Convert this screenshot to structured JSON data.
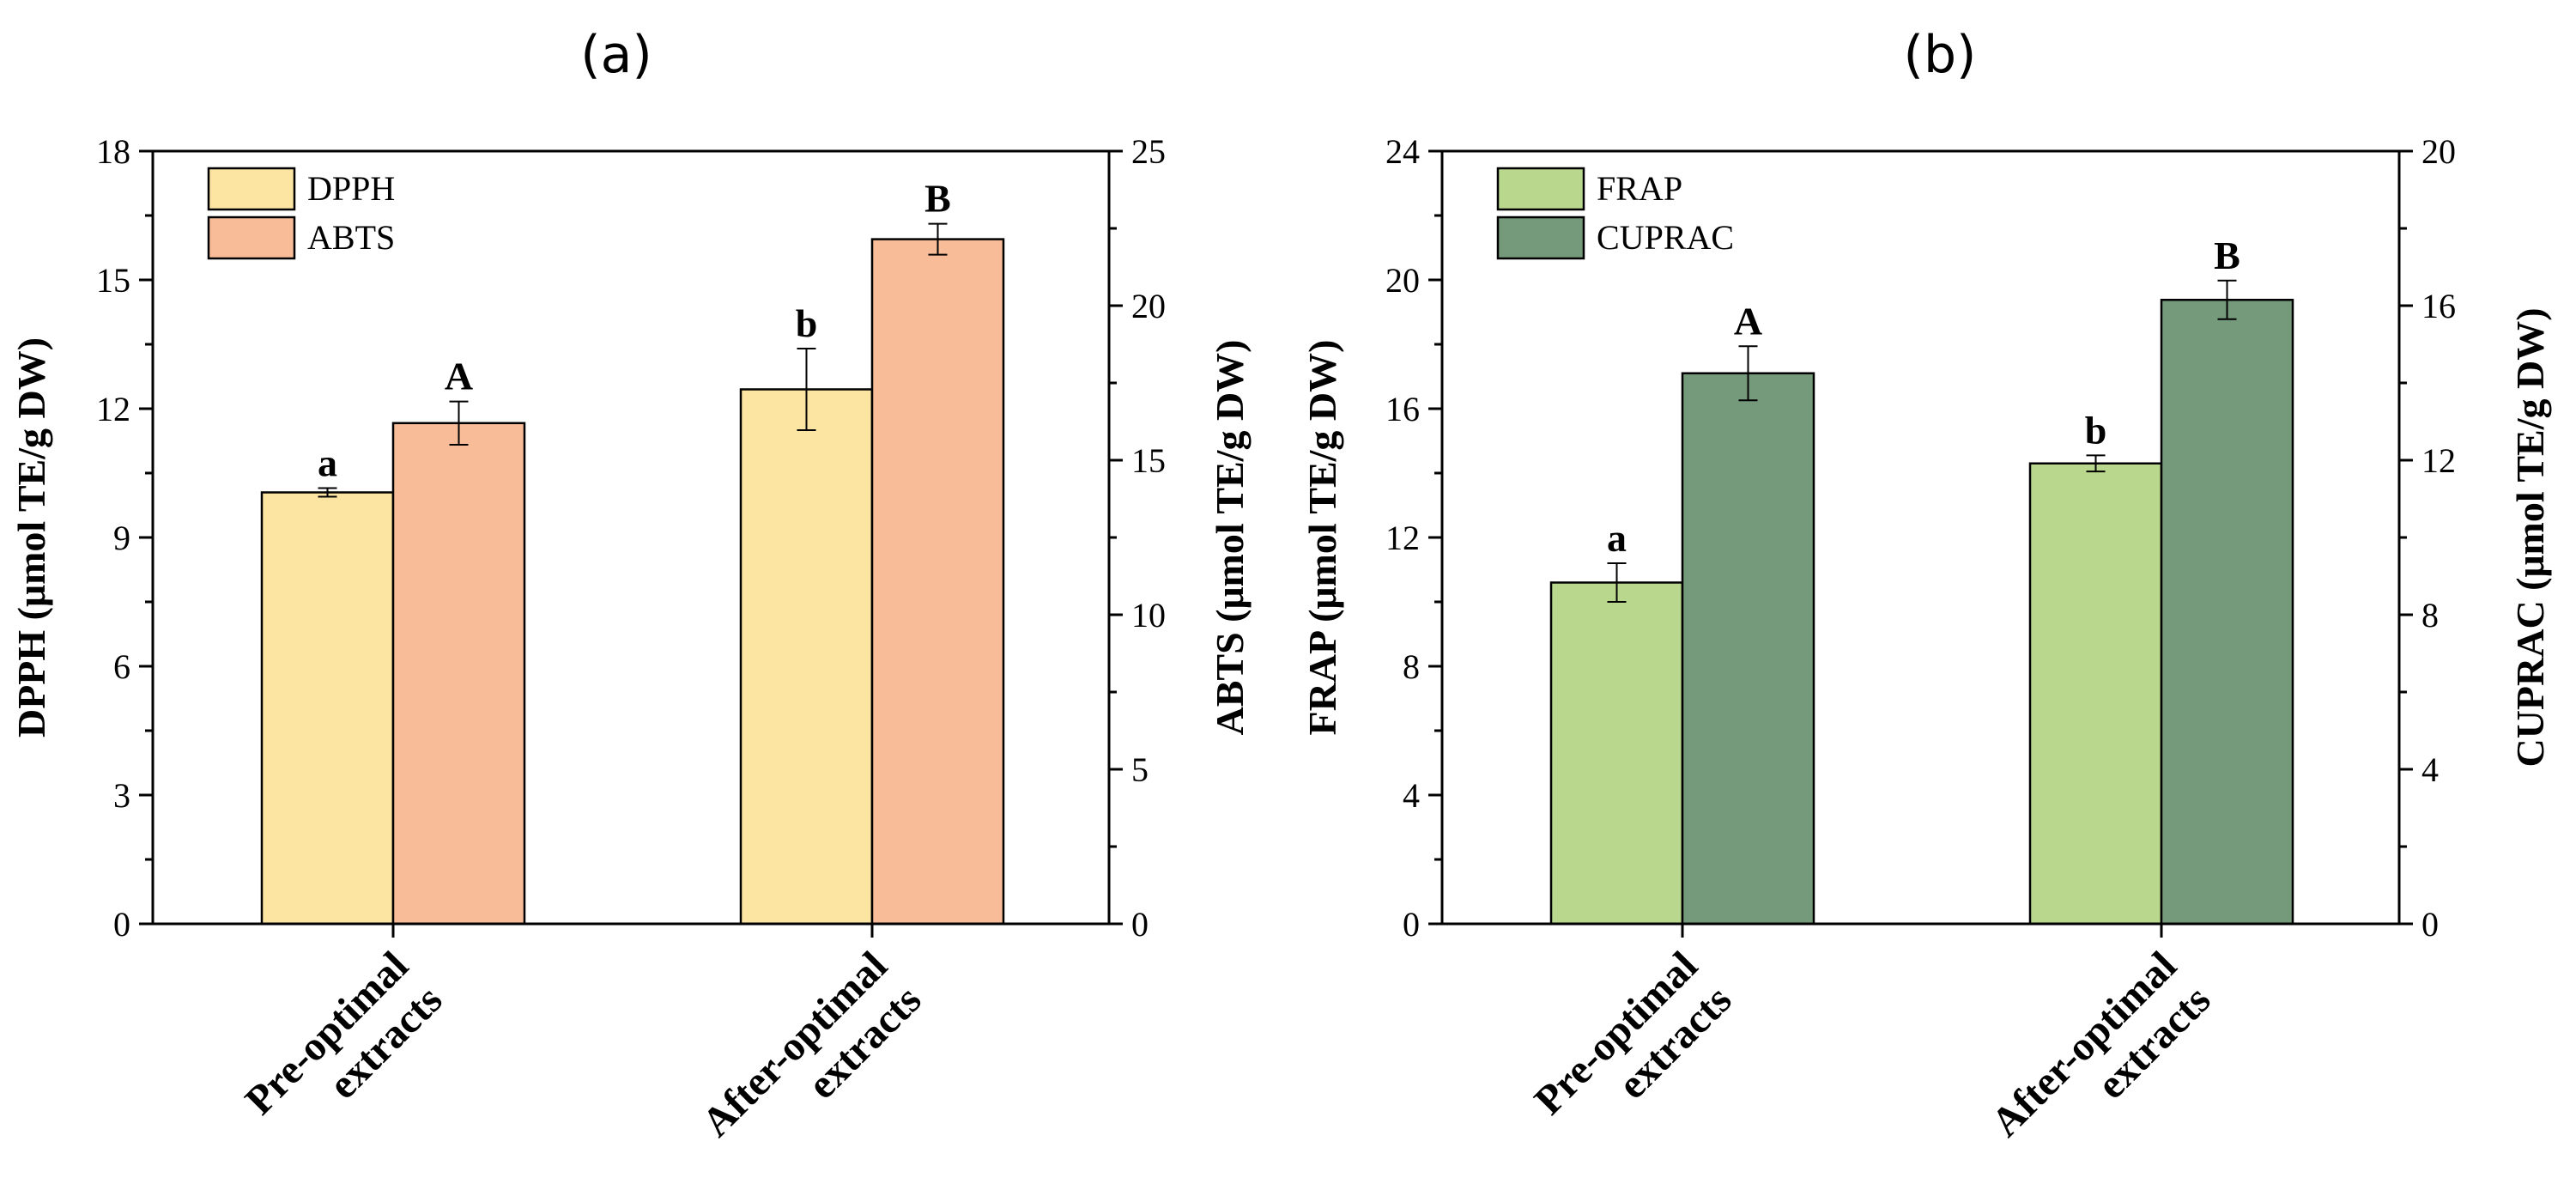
{
  "chart_data": [
    {
      "type": "bar",
      "title": "(a)",
      "categories": [
        "Pre-optimal extracts",
        "After-optimal extracts"
      ],
      "categories_lines": [
        [
          "Pre-optimal",
          "extracts"
        ],
        [
          "After-optimal",
          "extracts"
        ]
      ],
      "ylabel_left": "DPPH (μmol TE/g DW)",
      "ylabel_right": "ABTS (μmol TE/g DW)",
      "ylim_left": [
        0,
        18
      ],
      "ylim_right": [
        0,
        25
      ],
      "yticks_left": [
        0,
        3,
        6,
        9,
        12,
        15,
        18
      ],
      "yticks_right": [
        0,
        5,
        10,
        15,
        20,
        25
      ],
      "legend_position": "top-left",
      "series": [
        {
          "name": "DPPH",
          "axis": "left",
          "color": "#FCE4A3",
          "values": [
            10.05,
            12.45
          ],
          "errors": [
            0.1,
            0.95
          ],
          "labels": [
            "a",
            "b"
          ]
        },
        {
          "name": "ABTS",
          "axis": "right",
          "color": "#F8BD98",
          "values": [
            16.2,
            22.15
          ],
          "errors": [
            0.7,
            0.5
          ],
          "labels": [
            "A",
            "B"
          ]
        }
      ]
    },
    {
      "type": "bar",
      "title": "(b)",
      "categories": [
        "Pre-optimal extracts",
        "After-optimal extracts"
      ],
      "categories_lines": [
        [
          "Pre-optimal",
          "extracts"
        ],
        [
          "After-optimal",
          "extracts"
        ]
      ],
      "ylabel_left": "FRAP (μmol TE/g DW)",
      "ylabel_right": "CUPRAC (μmol TE/g DW)",
      "ylim_left": [
        0,
        24
      ],
      "ylim_right": [
        0,
        20
      ],
      "yticks_left": [
        0,
        4,
        8,
        12,
        16,
        20,
        24
      ],
      "yticks_right": [
        0,
        4,
        8,
        12,
        16,
        20
      ],
      "legend_position": "top-left",
      "series": [
        {
          "name": "FRAP",
          "axis": "left",
          "color": "#B9D88E",
          "values": [
            10.6,
            14.3
          ],
          "errors": [
            0.6,
            0.25
          ],
          "labels": [
            "a",
            "b"
          ]
        },
        {
          "name": "CUPRAC",
          "axis": "right",
          "color": "#74997B",
          "values": [
            14.25,
            16.15
          ],
          "errors": [
            0.7,
            0.5
          ],
          "labels": [
            "A",
            "B"
          ]
        }
      ]
    }
  ]
}
